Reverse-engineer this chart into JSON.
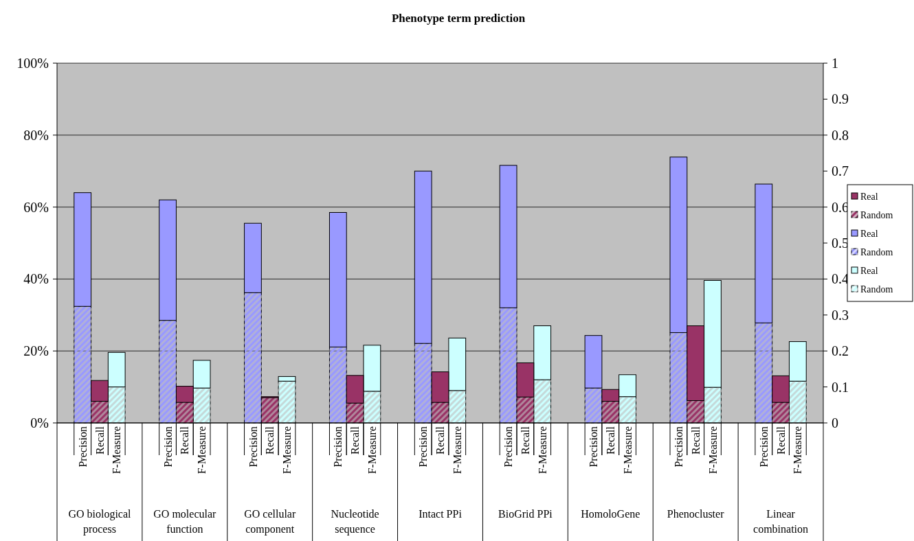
{
  "chart_data": {
    "type": "bar",
    "title": "Phenotype term prediction",
    "categories": [
      null,
      "Precision",
      "Recall",
      "F-Measure",
      null,
      null,
      "Precision",
      "Recall",
      "F-Measure",
      null,
      null,
      "Precision",
      "Recall",
      "F-Measure",
      null,
      null,
      "Precision",
      "Recall",
      "F-Measure",
      null,
      null,
      "Precision",
      "Recall",
      "F-Measure",
      null,
      null,
      "Precision",
      "Recall",
      "F-Measure",
      null,
      null,
      "Precision",
      "Recall",
      "F-Measure",
      null,
      null,
      "Precision",
      "Recall",
      "F-Measure",
      null,
      null,
      "Precision",
      "Recall",
      "F-Measure",
      null
    ],
    "annotations": [
      "GO biological process",
      "GO molecular function",
      "GO cellular component",
      "Nucleotide sequence",
      "Intact PPi",
      "BioGrid PPi",
      "HomoloGene",
      "Phenocluster",
      "Linear combination"
    ],
    "stacked": true,
    "series": [
      {
        "name": "Random",
        "color": "#ccffff",
        "values": [
          null,
          null,
          null,
          10.0,
          null,
          null,
          null,
          null,
          9.7,
          null,
          null,
          null,
          null,
          11.6,
          null,
          null,
          null,
          null,
          8.8,
          null,
          null,
          null,
          null,
          9.0,
          null,
          null,
          null,
          null,
          12.0,
          null,
          null,
          null,
          null,
          7.3,
          null,
          null,
          null,
          null,
          9.9,
          null,
          null,
          null,
          null,
          11.6,
          null
        ]
      },
      {
        "name": "Real",
        "color": "#ccffff",
        "values": [
          null,
          null,
          null,
          9.6,
          null,
          null,
          null,
          null,
          7.7,
          null,
          null,
          null,
          null,
          1.3,
          null,
          null,
          null,
          null,
          12.8,
          null,
          null,
          null,
          null,
          14.6,
          null,
          null,
          null,
          null,
          15.0,
          null,
          null,
          null,
          null,
          6.1,
          null,
          null,
          null,
          null,
          29.7,
          null,
          null,
          null,
          null,
          11.0,
          null
        ]
      },
      {
        "name": "Random",
        "color": "#9999ff",
        "values": [
          null,
          32.4,
          null,
          null,
          null,
          null,
          28.5,
          null,
          null,
          null,
          null,
          36.2,
          null,
          null,
          null,
          null,
          21.1,
          null,
          null,
          null,
          null,
          22.1,
          null,
          null,
          null,
          null,
          32.0,
          null,
          null,
          null,
          null,
          9.7,
          null,
          null,
          null,
          null,
          25.1,
          null,
          null,
          null,
          null,
          27.8,
          null,
          null,
          null
        ]
      },
      {
        "name": "Real",
        "color": "#9999ff",
        "values": [
          null,
          31.6,
          null,
          null,
          null,
          null,
          33.5,
          null,
          null,
          null,
          null,
          19.3,
          null,
          null,
          null,
          null,
          37.4,
          null,
          null,
          null,
          null,
          47.9,
          null,
          null,
          null,
          null,
          39.6,
          null,
          null,
          null,
          null,
          14.6,
          null,
          null,
          null,
          null,
          48.8,
          null,
          null,
          null,
          null,
          38.6,
          null,
          null,
          null
        ]
      },
      {
        "name": "Random",
        "color": "#993366",
        "values": [
          null,
          null,
          6.0,
          null,
          null,
          null,
          null,
          5.7,
          null,
          null,
          null,
          null,
          7.0,
          null,
          null,
          null,
          null,
          5.5,
          null,
          null,
          null,
          null,
          5.7,
          null,
          null,
          null,
          null,
          7.2,
          null,
          null,
          null,
          null,
          6.0,
          null,
          null,
          null,
          null,
          6.2,
          null,
          null,
          null,
          null,
          5.7,
          null,
          null
        ]
      },
      {
        "name": "Real",
        "color": "#993366",
        "values": [
          null,
          null,
          5.8,
          null,
          null,
          null,
          null,
          4.5,
          null,
          null,
          null,
          null,
          0.3,
          null,
          null,
          null,
          null,
          7.7,
          null,
          null,
          null,
          null,
          8.5,
          null,
          null,
          null,
          null,
          9.5,
          null,
          null,
          null,
          null,
          3.3,
          null,
          null,
          null,
          null,
          20.8,
          null,
          null,
          null,
          null,
          7.4,
          null,
          null
        ]
      }
    ],
    "ylim": [
      0,
      100
    ],
    "yticks": [
      {
        "value": 0,
        "label": "0%"
      },
      {
        "value": 20,
        "label": "20%"
      },
      {
        "value": 40,
        "label": "40%"
      },
      {
        "value": 60,
        "label": "60%"
      },
      {
        "value": 80,
        "label": "80%"
      },
      {
        "value": 100,
        "label": "100%"
      }
    ],
    "y2lim": [
      0,
      1
    ],
    "y2ticks": [
      0,
      0.1,
      0.2,
      0.3,
      0.4,
      0.5,
      0.6,
      0.7,
      0.8,
      0.9,
      1
    ],
    "grid": "y",
    "legend": "right"
  }
}
